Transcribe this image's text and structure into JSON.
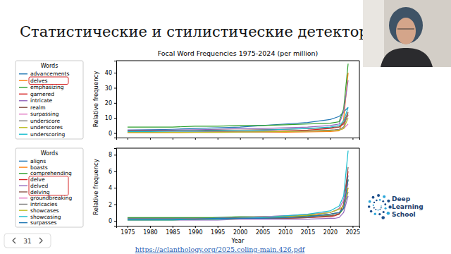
{
  "slide": {
    "title": "Статистические и стилистические детекторы",
    "page": 31,
    "link": "https://aclanthology.org/2025.coling-main.426.pdf",
    "logo": [
      "Deep",
      "Learning",
      "School"
    ]
  },
  "chart_data": [
    {
      "type": "line",
      "title": "Focal Word Frequencies 1975-2024 (per million)",
      "ylabel": "Relative frequency",
      "legend_title": "Words",
      "x": [
        1975,
        1980,
        1985,
        1990,
        1995,
        2000,
        2005,
        2010,
        2015,
        2020,
        2021,
        2022,
        2023,
        2024
      ],
      "series": [
        {
          "name": "advancements",
          "color": "#1f77b4",
          "values": [
            2,
            2.2,
            2.5,
            3,
            3.5,
            4,
            5,
            6,
            7,
            9,
            10,
            11,
            14,
            17
          ]
        },
        {
          "name": "delves",
          "color": "#ff7f0e",
          "values": [
            0.3,
            0.3,
            0.3,
            0.4,
            0.4,
            0.5,
            0.5,
            0.6,
            0.8,
            1,
            1.2,
            1.5,
            9,
            40
          ]
        },
        {
          "name": "emphasizing",
          "color": "#2ca02c",
          "values": [
            4,
            4,
            4,
            4.5,
            4.5,
            5,
            5,
            5.5,
            6,
            6.5,
            7,
            7.5,
            16,
            46
          ]
        },
        {
          "name": "garnered",
          "color": "#d62728",
          "values": [
            0.5,
            0.5,
            0.6,
            0.7,
            0.8,
            1,
            1.2,
            1.5,
            2,
            3,
            3.5,
            4,
            6,
            12
          ]
        },
        {
          "name": "intricate",
          "color": "#9467bd",
          "values": [
            2,
            2,
            2,
            2.2,
            2.5,
            3,
            3,
            3.5,
            4,
            5,
            5.5,
            6,
            14,
            35
          ]
        },
        {
          "name": "realm",
          "color": "#8c564b",
          "values": [
            1.5,
            1.5,
            1.5,
            1.8,
            2,
            2,
            2.2,
            2.5,
            3,
            3.5,
            4,
            4,
            7,
            14
          ]
        },
        {
          "name": "surpassing",
          "color": "#e377c2",
          "values": [
            0.5,
            0.5,
            0.5,
            0.6,
            0.6,
            0.7,
            0.8,
            1,
            1.2,
            1.5,
            1.6,
            2,
            3,
            6
          ]
        },
        {
          "name": "underscore",
          "color": "#7f7f7f",
          "values": [
            0.5,
            0.5,
            0.6,
            0.6,
            0.7,
            0.8,
            1,
            1.2,
            1.5,
            2,
            2.2,
            2.5,
            4,
            13
          ]
        },
        {
          "name": "underscores",
          "color": "#bcbd22",
          "values": [
            0.4,
            0.4,
            0.5,
            0.5,
            0.6,
            0.7,
            0.8,
            1,
            1.2,
            1.5,
            1.7,
            2,
            3,
            10
          ]
        },
        {
          "name": "underscoring",
          "color": "#17becf",
          "values": [
            1,
            1,
            1.2,
            1.3,
            1.5,
            1.8,
            2,
            2.5,
            3,
            4,
            4.5,
            5,
            8,
            17
          ]
        }
      ],
      "xlim": [
        1972.5,
        2026.5
      ],
      "ylim": [
        -3,
        48
      ],
      "xticks": [
        1975,
        1980,
        1985,
        1990,
        1995,
        2000,
        2005,
        2010,
        2015,
        2020,
        2025
      ],
      "yticks": [
        0,
        10,
        20,
        30,
        40
      ],
      "grid": false,
      "legend": "left",
      "tick_labels": "y"
    },
    {
      "type": "line",
      "xlabel": "Year",
      "ylabel": "Relative frequency",
      "legend_title": "Words",
      "x": [
        1975,
        1980,
        1985,
        1990,
        1995,
        2000,
        2005,
        2010,
        2015,
        2020,
        2021,
        2022,
        2023,
        2024
      ],
      "series": [
        {
          "name": "aligns",
          "color": "#1f77b4",
          "values": [
            0.3,
            0.3,
            0.3,
            0.3,
            0.4,
            0.4,
            0.5,
            0.6,
            0.7,
            1,
            1.2,
            1.5,
            2.5,
            5.5
          ]
        },
        {
          "name": "boasts",
          "color": "#ff7f0e",
          "values": [
            0.2,
            0.2,
            0.2,
            0.2,
            0.3,
            0.3,
            0.4,
            0.5,
            0.6,
            0.8,
            0.9,
            1,
            1.5,
            4
          ]
        },
        {
          "name": "comprehending",
          "color": "#2ca02c",
          "values": [
            0.4,
            0.4,
            0.4,
            0.4,
            0.4,
            0.5,
            0.5,
            0.5,
            0.6,
            0.6,
            0.7,
            0.8,
            1.5,
            5
          ]
        },
        {
          "name": "delve",
          "color": "#d62728",
          "values": [
            0.2,
            0.2,
            0.2,
            0.2,
            0.2,
            0.3,
            0.3,
            0.3,
            0.4,
            0.5,
            0.6,
            0.8,
            2,
            6
          ]
        },
        {
          "name": "delved",
          "color": "#9467bd",
          "values": [
            0.1,
            0.1,
            0.1,
            0.1,
            0.1,
            0.2,
            0.2,
            0.2,
            0.2,
            0.3,
            0.3,
            0.4,
            1,
            3
          ]
        },
        {
          "name": "delving",
          "color": "#8c564b",
          "values": [
            0.2,
            0.2,
            0.2,
            0.2,
            0.2,
            0.3,
            0.3,
            0.3,
            0.4,
            0.6,
            0.7,
            0.9,
            2,
            6.5
          ]
        },
        {
          "name": "groundbreaking",
          "color": "#e377c2",
          "values": [
            0.1,
            0.1,
            0.2,
            0.2,
            0.3,
            0.4,
            0.5,
            0.6,
            0.8,
            1,
            1.2,
            1.5,
            2.5,
            4.5
          ]
        },
        {
          "name": "intricacies",
          "color": "#7f7f7f",
          "values": [
            0.3,
            0.3,
            0.3,
            0.3,
            0.3,
            0.4,
            0.4,
            0.5,
            0.5,
            0.8,
            0.9,
            1,
            1.5,
            3.5
          ]
        },
        {
          "name": "showcases",
          "color": "#bcbd22",
          "values": [
            0.1,
            0.1,
            0.1,
            0.2,
            0.2,
            0.3,
            0.4,
            0.5,
            0.7,
            1,
            1.2,
            1.4,
            1.8,
            4
          ]
        },
        {
          "name": "showcasing",
          "color": "#17becf",
          "values": [
            0.1,
            0.1,
            0.1,
            0.2,
            0.2,
            0.3,
            0.4,
            0.6,
            0.8,
            1.2,
            1.5,
            1.8,
            3,
            8.5
          ]
        },
        {
          "name": "surpasses",
          "color": "#1f77b4",
          "values": [
            0.2,
            0.2,
            0.2,
            0.2,
            0.3,
            0.3,
            0.3,
            0.4,
            0.5,
            0.8,
            0.9,
            1,
            1.5,
            5
          ]
        }
      ],
      "xlim": [
        1972.5,
        2026.5
      ],
      "ylim": [
        -0.6,
        8.8
      ],
      "xticks": [
        1975,
        1980,
        1985,
        1990,
        1995,
        2000,
        2005,
        2010,
        2015,
        2020,
        2025
      ],
      "yticks": [
        0,
        2,
        4,
        6,
        8
      ],
      "grid": false,
      "legend": "left"
    }
  ]
}
